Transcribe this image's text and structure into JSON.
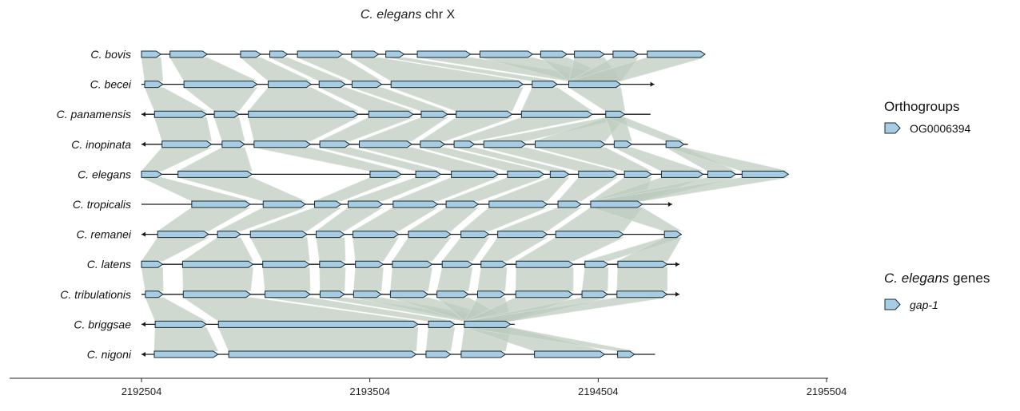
{
  "title": {
    "italic": "C. elegans",
    "rest": " chr X"
  },
  "axis": {
    "min": 2192504,
    "max": 2195504,
    "ticks": [
      "2192504",
      "2193504",
      "2194504",
      "2195504"
    ]
  },
  "legend": {
    "orthogroups": {
      "title": "Orthogroups",
      "items": [
        "OG0006394"
      ]
    },
    "genes": {
      "title_italic": "C. elegans",
      "title_rest": " genes",
      "items": [
        "gap-1"
      ]
    }
  },
  "colors": {
    "gene": "#a6cde3",
    "ribbon": "#bccabe",
    "line": "#1a1a1a"
  },
  "tracks": [
    {
      "name": "C. bovis",
      "start": 2192504,
      "end": 2194972,
      "dir": "forward",
      "exons": [
        [
          2192504,
          2192589
        ],
        [
          2192629,
          2192792
        ],
        [
          2192938,
          2193026
        ],
        [
          2193066,
          2193143
        ],
        [
          2193187,
          2193385
        ],
        [
          2193424,
          2193542
        ],
        [
          2193574,
          2193654
        ],
        [
          2193712,
          2193945
        ],
        [
          2193986,
          2194217
        ],
        [
          2194252,
          2194367
        ],
        [
          2194400,
          2194531
        ],
        [
          2194569,
          2194679
        ],
        [
          2194719,
          2194972
        ]
      ]
    },
    {
      "name": "C. becei",
      "start": 2192504,
      "end": 2194750,
      "dir": "forward",
      "exons": [
        [
          2192518,
          2192598
        ],
        [
          2192690,
          2193011
        ],
        [
          2193059,
          2193247
        ],
        [
          2193282,
          2193397
        ],
        [
          2193426,
          2193556
        ],
        [
          2193597,
          2194175
        ],
        [
          2194215,
          2194325
        ],
        [
          2194375,
          2194603
        ]
      ]
    },
    {
      "name": "C. panamensis",
      "start": 2192504,
      "end": 2194733,
      "dir": "reverse",
      "exons": [
        [
          2192561,
          2192789
        ],
        [
          2192823,
          2192931
        ],
        [
          2192972,
          2193452
        ],
        [
          2193499,
          2193694
        ],
        [
          2193729,
          2193844
        ],
        [
          2193882,
          2194127
        ],
        [
          2194168,
          2194478
        ],
        [
          2194537,
          2194621
        ]
      ]
    },
    {
      "name": "C. inopinata",
      "start": 2192504,
      "end": 2194897,
      "dir": "reverse",
      "exons": [
        [
          2192594,
          2192811
        ],
        [
          2192857,
          2192956
        ],
        [
          2192997,
          2193244
        ],
        [
          2193285,
          2193416
        ],
        [
          2193458,
          2193688
        ],
        [
          2193725,
          2193832
        ],
        [
          2193873,
          2193962
        ],
        [
          2194003,
          2194188
        ],
        [
          2194228,
          2194535
        ],
        [
          2194574,
          2194651
        ],
        [
          2194801,
          2194880
        ]
      ]
    },
    {
      "name": "C. elegans",
      "start": 2192504,
      "end": 2195337,
      "dir": "forward",
      "exons": [
        [
          2192504,
          2192593
        ],
        [
          2192664,
          2192988
        ],
        [
          2193505,
          2193641
        ],
        [
          2193705,
          2193814
        ],
        [
          2193861,
          2194066
        ],
        [
          2194107,
          2194266
        ],
        [
          2194294,
          2194376
        ],
        [
          2194418,
          2194588
        ],
        [
          2194619,
          2194737
        ],
        [
          2194781,
          2194963
        ],
        [
          2194984,
          2195106
        ],
        [
          2195134,
          2195337
        ]
      ]
    },
    {
      "name": "C. tropicalis",
      "start": 2192504,
      "end": 2194828,
      "dir": "forward",
      "exons": [
        [
          2192724,
          2192980
        ],
        [
          2193037,
          2193222
        ],
        [
          2193262,
          2193378
        ],
        [
          2193409,
          2193560
        ],
        [
          2193606,
          2193801
        ],
        [
          2193838,
          2193979
        ],
        [
          2194026,
          2194281
        ],
        [
          2194328,
          2194429
        ],
        [
          2194471,
          2194697
        ]
      ]
    },
    {
      "name": "C. remanei",
      "start": 2192504,
      "end": 2194870,
      "dir": "reverse",
      "exons": [
        [
          2192575,
          2192798
        ],
        [
          2192837,
          2192938
        ],
        [
          2192981,
          2193229
        ],
        [
          2193269,
          2193393
        ],
        [
          2193430,
          2193630
        ],
        [
          2193673,
          2193859
        ],
        [
          2193903,
          2194026
        ],
        [
          2194064,
          2194281
        ],
        [
          2194318,
          2194615
        ],
        [
          2194794,
          2194868
        ]
      ]
    },
    {
      "name": "C. latens",
      "start": 2192504,
      "end": 2194860,
      "dir": "forward",
      "exons": [
        [
          2192504,
          2192597
        ],
        [
          2192684,
          2192993
        ],
        [
          2193035,
          2193240
        ],
        [
          2193284,
          2193397
        ],
        [
          2193441,
          2193563
        ],
        [
          2193603,
          2193777
        ],
        [
          2193821,
          2193953
        ],
        [
          2193991,
          2194104
        ],
        [
          2194145,
          2194395
        ],
        [
          2194446,
          2194548
        ],
        [
          2194590,
          2194807
        ]
      ]
    },
    {
      "name": "C. tribulationis",
      "start": 2192504,
      "end": 2194860,
      "dir": "forward",
      "exons": [
        [
          2192521,
          2192599
        ],
        [
          2192687,
          2192982
        ],
        [
          2193045,
          2193243
        ],
        [
          2193286,
          2193393
        ],
        [
          2193433,
          2193554
        ],
        [
          2193594,
          2193759
        ],
        [
          2193798,
          2193936
        ],
        [
          2193976,
          2194096
        ],
        [
          2194143,
          2194394
        ],
        [
          2194433,
          2194545
        ],
        [
          2194586,
          2194806
        ]
      ]
    },
    {
      "name": "C. briggsae",
      "start": 2192504,
      "end": 2194138,
      "dir": "reverse",
      "exons": [
        [
          2192564,
          2192788
        ],
        [
          2192841,
          2193715
        ],
        [
          2193761,
          2193876
        ],
        [
          2193918,
          2194120
        ]
      ]
    },
    {
      "name": "C. nigoni",
      "start": 2192504,
      "end": 2194753,
      "dir": "reverse",
      "exons": [
        [
          2192560,
          2192839
        ],
        [
          2192886,
          2193707
        ],
        [
          2193750,
          2193858
        ],
        [
          2193904,
          2194098
        ],
        [
          2194225,
          2194532
        ],
        [
          2194589,
          2194663
        ]
      ]
    }
  ]
}
